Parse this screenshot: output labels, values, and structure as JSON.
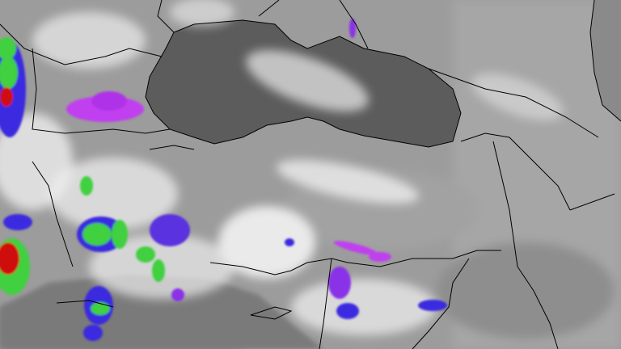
{
  "image": {
    "kind": "infrared satellite image with country borders",
    "colors": {
      "land_background": "#9c9c9c",
      "sea_dark": "#5a5a5a",
      "cloud_white": "#f2f2f2",
      "storm_magenta": "#c040f0",
      "storm_blue": "#3a2ae0",
      "storm_green": "#40d040",
      "storm_yellow": "#e8e020",
      "storm_red": "#d01010",
      "border_line": "#000000"
    }
  }
}
